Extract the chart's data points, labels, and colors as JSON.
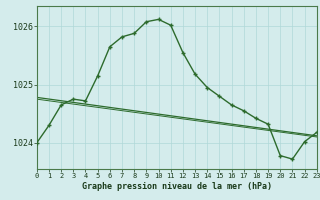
{
  "hours": [
    0,
    1,
    2,
    3,
    4,
    5,
    6,
    7,
    8,
    9,
    10,
    11,
    12,
    13,
    14,
    15,
    16,
    17,
    18,
    19,
    20,
    21,
    22,
    23
  ],
  "pressure": [
    1024.0,
    1024.3,
    1024.65,
    1024.75,
    1024.72,
    1025.15,
    1025.65,
    1025.82,
    1025.88,
    1026.08,
    1026.12,
    1026.02,
    1025.55,
    1025.18,
    1024.95,
    1024.8,
    1024.65,
    1024.55,
    1024.42,
    1024.32,
    1023.78,
    1023.72,
    1024.02,
    1024.18
  ],
  "trend_y0": 1024.78,
  "trend_y1": 1024.12,
  "trend2_y0": 1024.75,
  "trend2_y1": 1024.1,
  "bg_color": "#d4ecec",
  "grid_color": "#b0d8d8",
  "line_color": "#2d6b2d",
  "xlabel": "Graphe pression niveau de la mer (hPa)",
  "ylim": [
    1023.55,
    1026.35
  ],
  "yticks": [
    1024,
    1025,
    1026
  ],
  "xlim": [
    0,
    23
  ]
}
